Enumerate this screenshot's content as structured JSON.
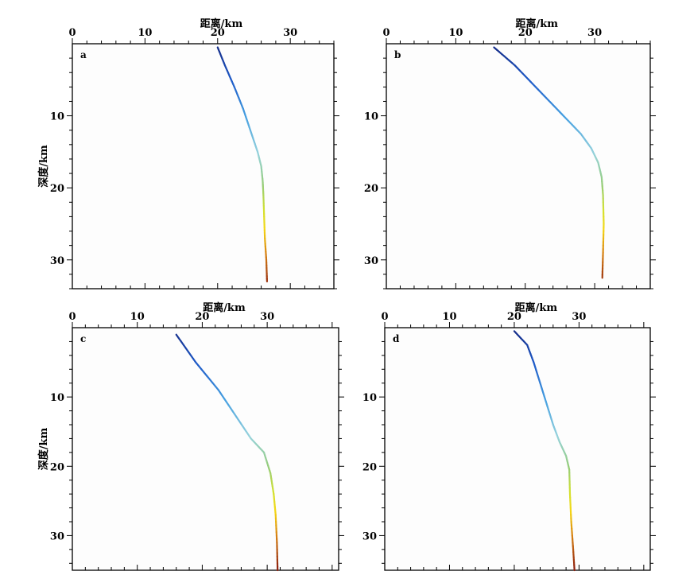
{
  "chart_data": [
    {
      "type": "line",
      "panel_label": "a",
      "xlabel": "距离/km",
      "ylabel": "深度/km",
      "xlim": [
        0,
        36
      ],
      "ylim": [
        0,
        34
      ],
      "x_ticks": [
        0,
        10,
        20,
        30
      ],
      "y_ticks": [
        10,
        20,
        30
      ],
      "y_inverted": true,
      "x_axis_position": "top",
      "series": [
        {
          "x": [
            20.0,
            21.0,
            22.3,
            23.5,
            24.5,
            25.5,
            26.0,
            26.2,
            26.3,
            26.4,
            26.5,
            26.7,
            26.8
          ],
          "y": [
            0.5,
            3.0,
            6.0,
            9.0,
            12.0,
            15.0,
            17.0,
            19.0,
            21.0,
            24.0,
            27.0,
            30.0,
            33.0
          ]
        }
      ]
    },
    {
      "type": "line",
      "panel_label": "b",
      "xlabel": "距离/km",
      "ylabel": "",
      "xlim": [
        0,
        38
      ],
      "ylim": [
        0,
        34
      ],
      "x_ticks": [
        0,
        10,
        20,
        30
      ],
      "y_ticks": [
        10,
        20,
        30
      ],
      "y_inverted": true,
      "x_axis_position": "top",
      "series": [
        {
          "x": [
            15.5,
            18.5,
            21.5,
            24.0,
            26.0,
            28.0,
            29.5,
            30.5,
            31.0,
            31.2,
            31.3,
            31.2,
            31.1
          ],
          "y": [
            0.5,
            3.0,
            6.0,
            8.5,
            10.5,
            12.5,
            14.5,
            16.5,
            18.5,
            21.0,
            25.0,
            29.0,
            32.5
          ]
        }
      ]
    },
    {
      "type": "line",
      "panel_label": "c",
      "xlabel": "距离/km",
      "ylabel": "深度/km",
      "xlim": [
        0,
        41
      ],
      "ylim": [
        0,
        35
      ],
      "x_ticks": [
        0,
        10,
        20,
        30
      ],
      "y_ticks": [
        10,
        20,
        30
      ],
      "y_inverted": true,
      "x_axis_position": "top",
      "series": [
        {
          "x": [
            16.0,
            19.0,
            22.5,
            25.0,
            27.5,
            29.5,
            30.5,
            31.0,
            31.3,
            31.5,
            31.6
          ],
          "y": [
            1.0,
            5.0,
            9.0,
            12.5,
            16.0,
            18.0,
            21.0,
            24.0,
            27.0,
            31.0,
            35.0
          ]
        }
      ]
    },
    {
      "type": "line",
      "panel_label": "d",
      "xlabel": "距离/km",
      "ylabel": "",
      "xlim": [
        0,
        41
      ],
      "ylim": [
        0,
        35
      ],
      "x_ticks": [
        0,
        10,
        20,
        30
      ],
      "y_ticks": [
        10,
        20,
        30
      ],
      "y_inverted": true,
      "x_axis_position": "top",
      "series": [
        {
          "x": [
            20.0,
            22.0,
            23.0,
            24.0,
            25.0,
            26.0,
            27.0,
            28.0,
            28.5,
            28.6,
            28.8,
            29.1,
            29.3
          ],
          "y": [
            0.5,
            2.5,
            5.0,
            8.0,
            11.0,
            14.0,
            16.5,
            18.5,
            20.5,
            24.0,
            28.0,
            32.0,
            35.0
          ]
        }
      ]
    }
  ]
}
